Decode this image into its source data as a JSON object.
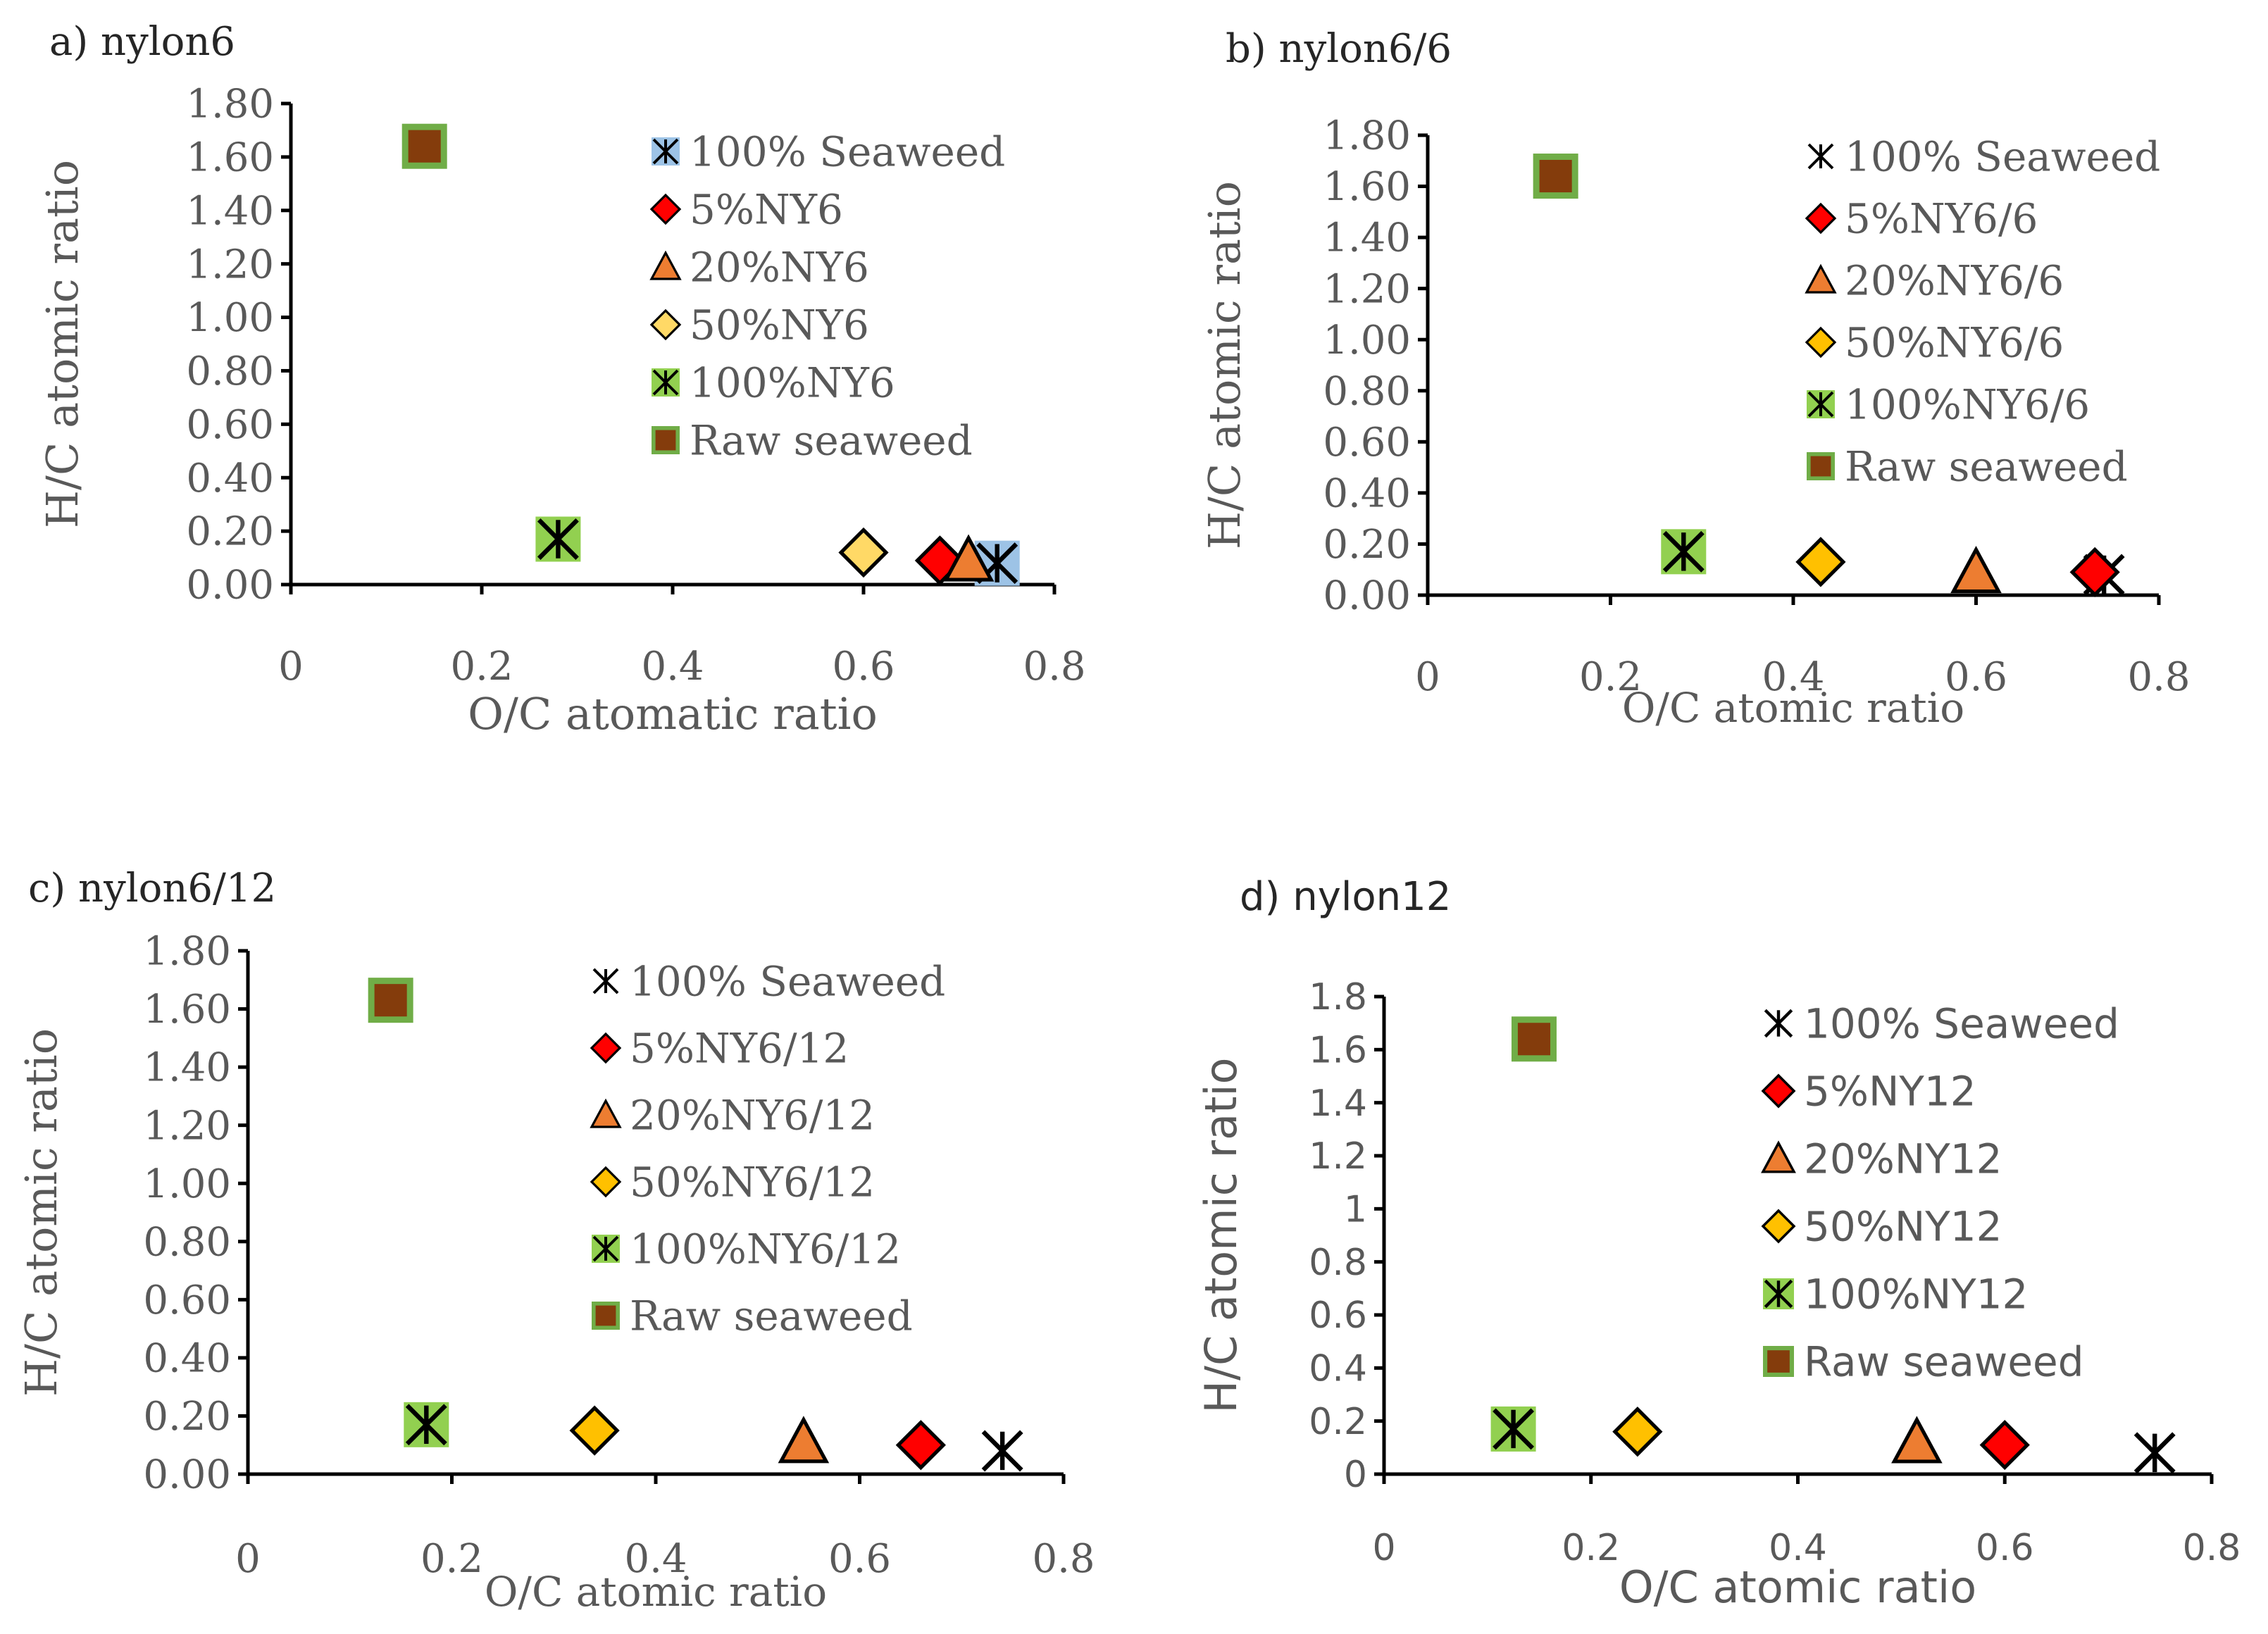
{
  "figure": {
    "panels_count": 4
  },
  "chart_data": [
    {
      "type": "scatter",
      "panel": "a",
      "title": "a) nylon6",
      "xlabel": "O/C atomatic ratio",
      "ylabel": "H/C atomic ratio",
      "xlim": [
        0,
        0.8
      ],
      "ylim": [
        0,
        1.8
      ],
      "xticks": [
        "0",
        "0.2",
        "0.4",
        "0.6",
        "0.8"
      ],
      "yticks": [
        "0.00",
        "0.20",
        "0.40",
        "0.60",
        "0.80",
        "1.00",
        "1.20",
        "1.40",
        "1.60",
        "1.80"
      ],
      "legend_position": "top-right",
      "series": [
        {
          "name": "100% Seaweed",
          "marker": "star",
          "points": [
            [
              0.74,
              0.08
            ]
          ]
        },
        {
          "name": "5%NY6",
          "marker": "diamond",
          "points": [
            [
              0.68,
              0.09
            ]
          ]
        },
        {
          "name": "20%NY6",
          "marker": "triangle",
          "points": [
            [
              0.71,
              0.09
            ]
          ]
        },
        {
          "name": "50%NY6",
          "marker": "diamond",
          "points": [
            [
              0.6,
              0.12
            ]
          ]
        },
        {
          "name": "100%NY6",
          "marker": "star",
          "points": [
            [
              0.28,
              0.17
            ]
          ]
        },
        {
          "name": "Raw seaweed",
          "marker": "square",
          "points": [
            [
              0.14,
              1.64
            ]
          ]
        }
      ]
    },
    {
      "type": "scatter",
      "panel": "b",
      "title": "b) nylon6/6",
      "xlabel": "O/C atomic ratio",
      "ylabel": "H/C atomic ratio",
      "xlim": [
        0,
        0.8
      ],
      "ylim": [
        0,
        1.8
      ],
      "xticks": [
        "0",
        "0.2",
        "0.4",
        "0.6",
        "0.8"
      ],
      "yticks": [
        "0.00",
        "0.20",
        "0.40",
        "0.60",
        "0.80",
        "1.00",
        "1.20",
        "1.40",
        "1.60",
        "1.80"
      ],
      "legend_position": "top-right",
      "series": [
        {
          "name": "100% Seaweed",
          "marker": "star",
          "points": [
            [
              0.74,
              0.08
            ]
          ]
        },
        {
          "name": "5%NY6/6",
          "marker": "diamond",
          "points": [
            [
              0.73,
              0.09
            ]
          ]
        },
        {
          "name": "20%NY6/6",
          "marker": "triangle",
          "points": [
            [
              0.6,
              0.09
            ]
          ]
        },
        {
          "name": "50%NY6/6",
          "marker": "diamond",
          "points": [
            [
              0.43,
              0.13
            ]
          ]
        },
        {
          "name": "100%NY6/6",
          "marker": "star",
          "points": [
            [
              0.28,
              0.17
            ]
          ]
        },
        {
          "name": "Raw seaweed",
          "marker": "square",
          "points": [
            [
              0.14,
              1.64
            ]
          ]
        }
      ]
    },
    {
      "type": "scatter",
      "panel": "c",
      "title": "c) nylon6/12",
      "xlabel": "O/C atomic ratio",
      "ylabel": "H/C atomic ratio",
      "xlim": [
        0,
        0.8
      ],
      "ylim": [
        0,
        1.8
      ],
      "xticks": [
        "0",
        "0.2",
        "0.4",
        "0.6",
        "0.8"
      ],
      "yticks": [
        "0.00",
        "0.20",
        "0.40",
        "0.60",
        "0.80",
        "1.00",
        "1.20",
        "1.40",
        "1.60",
        "1.80"
      ],
      "legend_position": "top-right",
      "series": [
        {
          "name": "100% Seaweed",
          "marker": "star",
          "points": [
            [
              0.74,
              0.08
            ]
          ]
        },
        {
          "name": "5%NY6/12",
          "marker": "diamond",
          "points": [
            [
              0.66,
              0.1
            ]
          ]
        },
        {
          "name": "20%NY6/12",
          "marker": "triangle",
          "points": [
            [
              0.545,
              0.11
            ]
          ]
        },
        {
          "name": "50%NY6/12",
          "marker": "diamond",
          "points": [
            [
              0.34,
              0.15
            ]
          ]
        },
        {
          "name": "100%NY6/12",
          "marker": "star",
          "points": [
            [
              0.175,
              0.17
            ]
          ]
        },
        {
          "name": "Raw seaweed",
          "marker": "square",
          "points": [
            [
              0.14,
              1.63
            ]
          ]
        }
      ]
    },
    {
      "type": "scatter",
      "panel": "d",
      "title": "d) nylon12",
      "xlabel": "O/C atomic ratio",
      "ylabel": "H/C atomic ratio",
      "xlim": [
        0,
        0.8
      ],
      "ylim": [
        0,
        1.8
      ],
      "xticks": [
        "0",
        "0.2",
        "0.4",
        "0.6",
        "0.8"
      ],
      "yticks": [
        "0",
        "0.2",
        "0.4",
        "0.6",
        "0.8",
        "1",
        "1.2",
        "1.4",
        "1.6",
        "1.8"
      ],
      "legend_position": "top-right",
      "series": [
        {
          "name": "100% Seaweed",
          "marker": "star",
          "points": [
            [
              0.745,
              0.08
            ]
          ]
        },
        {
          "name": "5%NY12",
          "marker": "diamond",
          "points": [
            [
              0.6,
              0.11
            ]
          ]
        },
        {
          "name": "20%NY12",
          "marker": "triangle",
          "points": [
            [
              0.515,
              0.12
            ]
          ]
        },
        {
          "name": "50%NY12",
          "marker": "diamond",
          "points": [
            [
              0.245,
              0.16
            ]
          ]
        },
        {
          "name": "100%NY12",
          "marker": "star",
          "points": [
            [
              0.125,
              0.17
            ]
          ]
        },
        {
          "name": "Raw seaweed",
          "marker": "square",
          "points": [
            [
              0.145,
              1.64
            ]
          ]
        }
      ]
    }
  ],
  "styles": {
    "panels": [
      {
        "fontClass": "serif",
        "markers": [
          {
            "fill": "#9dc3e6",
            "stroke": "#000000"
          },
          {
            "fill": "#ff0000",
            "stroke": "#000000"
          },
          {
            "fill": "#ed7d31",
            "stroke": "#000000"
          },
          {
            "fill": "#ffd966",
            "stroke": "#000000"
          },
          {
            "fill": "#92d050",
            "stroke": "#000000"
          },
          {
            "fill": "#843c0c",
            "stroke": "#70ad47"
          }
        ]
      },
      {
        "fontClass": "serif",
        "markers": [
          {
            "fill": "#000000",
            "stroke": "#000000"
          },
          {
            "fill": "#ff0000",
            "stroke": "#000000"
          },
          {
            "fill": "#ed7d31",
            "stroke": "#000000"
          },
          {
            "fill": "#ffc000",
            "stroke": "#000000"
          },
          {
            "fill": "#92d050",
            "stroke": "#000000"
          },
          {
            "fill": "#843c0c",
            "stroke": "#70ad47"
          }
        ]
      },
      {
        "fontClass": "serif",
        "markers": [
          {
            "fill": "#000000",
            "stroke": "#000000"
          },
          {
            "fill": "#ff0000",
            "stroke": "#000000"
          },
          {
            "fill": "#ed7d31",
            "stroke": "#000000"
          },
          {
            "fill": "#ffc000",
            "stroke": "#000000"
          },
          {
            "fill": "#92d050",
            "stroke": "#000000"
          },
          {
            "fill": "#843c0c",
            "stroke": "#70ad47"
          }
        ]
      },
      {
        "fontClass": "sans",
        "markers": [
          {
            "fill": "#000000",
            "stroke": "#000000"
          },
          {
            "fill": "#ff0000",
            "stroke": "#000000"
          },
          {
            "fill": "#ed7d31",
            "stroke": "#000000"
          },
          {
            "fill": "#ffc000",
            "stroke": "#000000"
          },
          {
            "fill": "#92d050",
            "stroke": "#000000"
          },
          {
            "fill": "#843c0c",
            "stroke": "#70ad47"
          }
        ]
      }
    ]
  }
}
